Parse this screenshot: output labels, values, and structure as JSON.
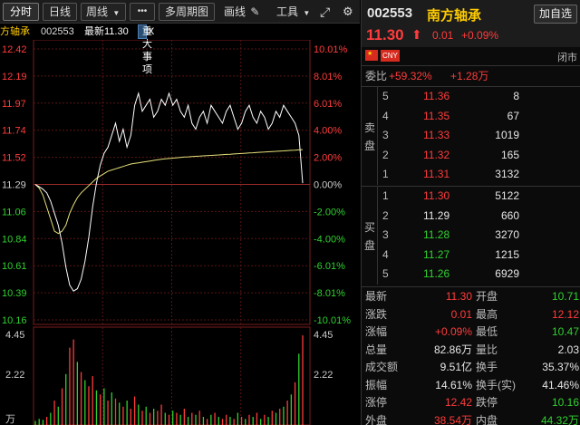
{
  "toolbar": {
    "tabs": [
      {
        "label": "分时",
        "active": true
      },
      {
        "label": "日线",
        "active": false
      },
      {
        "label": "周线",
        "active": false
      }
    ],
    "more_label": "•••",
    "multi_period_label": "多周期图",
    "draw_label": "画线",
    "tools_label": "工具"
  },
  "chart_info": {
    "name": "方轴承",
    "code": "002553",
    "latest_label": "最新11.30",
    "event_label": "重大事项",
    "event_close": "X"
  },
  "chart_data": [
    {
      "type": "line",
      "title": "",
      "price_ticks": [
        "12.42",
        "12.19",
        "11.97",
        "11.74",
        "11.52",
        "11.29",
        "11.06",
        "10.84",
        "10.61",
        "10.39",
        "10.16"
      ],
      "pct_ticks": [
        "10.01%",
        "8.01%",
        "6.01%",
        "4.00%",
        "2.00%",
        "0.00%",
        "-2.00%",
        "-4.00%",
        "-6.01%",
        "-8.01%",
        "-10.01%"
      ],
      "ylim": [
        10.16,
        12.42
      ],
      "prev_close": 11.29,
      "series": [
        {
          "values": [
            11.29,
            11.27,
            11.25,
            11.22,
            11.15,
            11.05,
            10.95,
            10.8,
            10.6,
            10.45,
            10.4,
            10.42,
            10.5,
            10.65,
            10.85,
            11.1,
            11.3,
            11.45,
            11.55,
            11.6,
            11.7,
            11.8,
            11.65,
            11.75,
            11.6,
            11.7,
            11.95,
            12.05,
            11.9,
            11.95,
            12.0,
            11.85,
            11.9,
            12.0,
            11.95,
            12.05,
            11.95,
            12.0,
            11.9,
            11.85,
            11.95,
            11.8,
            11.75,
            11.85,
            11.9,
            11.8,
            11.95,
            11.9,
            11.85,
            11.8,
            11.9,
            11.95,
            11.85,
            11.75,
            11.8,
            11.9,
            11.95,
            11.85,
            11.8,
            11.9,
            11.85,
            11.75,
            11.8,
            11.9,
            11.85,
            11.95,
            11.9,
            11.85,
            11.8,
            11.7,
            11.3
          ]
        },
        {
          "values": [
            11.29,
            11.26,
            11.2,
            11.1,
            11.0,
            10.9,
            10.88,
            10.9,
            10.95,
            11.05,
            11.12,
            11.18,
            11.22,
            11.25,
            11.28,
            11.31,
            11.34,
            11.36,
            11.38,
            11.4,
            11.41,
            11.42,
            11.43,
            11.44,
            11.45,
            11.46,
            11.465,
            11.47,
            11.475,
            11.48,
            11.485,
            11.49,
            11.495,
            11.5,
            11.503,
            11.506,
            11.509,
            11.512,
            11.515,
            11.518,
            11.52,
            11.522,
            11.524,
            11.526,
            11.528,
            11.53,
            11.532,
            11.534,
            11.536,
            11.538,
            11.54,
            11.542,
            11.544,
            11.546,
            11.548,
            11.55,
            11.552,
            11.554,
            11.556,
            11.558,
            11.56,
            11.562,
            11.564,
            11.566,
            11.568,
            11.57,
            11.572,
            11.574,
            11.576,
            11.578,
            11.58
          ]
        }
      ],
      "volume": {
        "ticks": [
          "4.45",
          "2.22",
          "万"
        ],
        "values": [
          0.2,
          0.3,
          0.25,
          0.4,
          0.6,
          1.2,
          0.9,
          1.8,
          2.5,
          3.8,
          4.2,
          3.1,
          2.6,
          2.2,
          1.9,
          2.4,
          1.7,
          1.5,
          1.8,
          1.2,
          1.6,
          1.3,
          1.1,
          0.9,
          1.2,
          0.8,
          1.4,
          1.0,
          0.7,
          0.9,
          0.6,
          0.8,
          0.7,
          1.0,
          0.6,
          0.5,
          0.7,
          0.6,
          0.5,
          0.8,
          0.4,
          0.6,
          0.5,
          0.7,
          0.4,
          0.3,
          0.5,
          0.6,
          0.4,
          0.3,
          0.5,
          0.4,
          0.3,
          0.6,
          0.4,
          0.3,
          0.5,
          0.4,
          0.6,
          0.3,
          0.5,
          0.4,
          0.7,
          0.6,
          0.8,
          0.9,
          1.2,
          1.5,
          2.1,
          3.5,
          4.4
        ],
        "directions": [
          "g",
          "g",
          "g",
          "r",
          "g",
          "r",
          "g",
          "r",
          "g",
          "r",
          "r",
          "g",
          "r",
          "g",
          "r",
          "r",
          "g",
          "r",
          "g",
          "r",
          "g",
          "r",
          "g",
          "r",
          "g",
          "r",
          "r",
          "g",
          "r",
          "g",
          "r",
          "g",
          "r",
          "r",
          "g",
          "r",
          "g",
          "r",
          "g",
          "r",
          "g",
          "r",
          "g",
          "r",
          "g",
          "r",
          "g",
          "r",
          "g",
          "r",
          "r",
          "g",
          "r",
          "g",
          "r",
          "g",
          "r",
          "g",
          "r",
          "g",
          "r",
          "g",
          "r",
          "g",
          "r",
          "g",
          "r",
          "g",
          "r",
          "g",
          "r"
        ]
      }
    }
  ],
  "panel": {
    "code": "002553",
    "name": "南方轴承",
    "watch_label": "加自选",
    "price": "11.30",
    "change": "0.01",
    "change_pct": "+0.09%",
    "currency_tag": "CNY",
    "market_status": "闭市",
    "commission_label": "委比",
    "commission_pct": "+59.32%",
    "commission_diff": "+1.28万",
    "sell_label_1": "卖",
    "sell_label_2": "盘",
    "buy_label_1": "买",
    "buy_label_2": "盘",
    "asks": [
      {
        "level": "5",
        "price": "11.36",
        "vol": "8"
      },
      {
        "level": "4",
        "price": "11.35",
        "vol": "67"
      },
      {
        "level": "3",
        "price": "11.33",
        "vol": "1019"
      },
      {
        "level": "2",
        "price": "11.32",
        "vol": "165"
      },
      {
        "level": "1",
        "price": "11.31",
        "vol": "3132"
      }
    ],
    "bids": [
      {
        "level": "1",
        "price": "11.30",
        "vol": "5122"
      },
      {
        "level": "2",
        "price": "11.29",
        "vol": "660"
      },
      {
        "level": "3",
        "price": "11.28",
        "vol": "3270"
      },
      {
        "level": "4",
        "price": "11.27",
        "vol": "1215"
      },
      {
        "level": "5",
        "price": "11.26",
        "vol": "6929"
      }
    ],
    "stats": [
      {
        "l1": "最新",
        "v1": "11.30",
        "c1": "red",
        "l2": "开盘",
        "v2": "10.71",
        "c2": "green"
      },
      {
        "l1": "涨跌",
        "v1": "0.01",
        "c1": "red",
        "l2": "最高",
        "v2": "12.12",
        "c2": "red"
      },
      {
        "l1": "涨幅",
        "v1": "+0.09%",
        "c1": "red",
        "l2": "最低",
        "v2": "10.47",
        "c2": "green"
      },
      {
        "l1": "总量",
        "v1": "82.86万",
        "c1": "white",
        "l2": "量比",
        "v2": "2.03",
        "c2": "white"
      },
      {
        "l1": "成交额",
        "v1": "9.51亿",
        "c1": "white",
        "l2": "换手",
        "v2": "35.37%",
        "c2": "white"
      },
      {
        "l1": "振幅",
        "v1": "14.61%",
        "c1": "white",
        "l2": "换手(实)",
        "v2": "41.46%",
        "c2": "white"
      },
      {
        "l1": "涨停",
        "v1": "12.42",
        "c1": "red",
        "l2": "跌停",
        "v2": "10.16",
        "c2": "green"
      },
      {
        "l1": "外盘",
        "v1": "38.54万",
        "c1": "red",
        "l2": "内盘",
        "v2": "44.32万",
        "c2": "green"
      }
    ]
  },
  "colors": {
    "up": "#ff3b3b",
    "down": "#2fd12f",
    "price_line": "#ffffff",
    "avg_line": "#e8e27a"
  }
}
